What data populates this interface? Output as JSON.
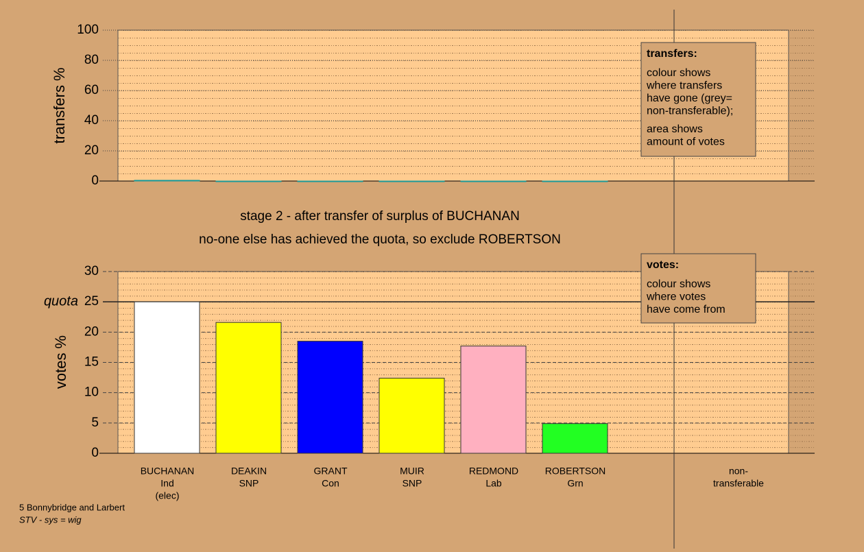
{
  "chart_data": [
    {
      "type": "bar",
      "ylabel": "transfers %",
      "ylim": [
        0,
        100
      ],
      "yticks": [
        0,
        20,
        40,
        60,
        80,
        100
      ],
      "values": [
        0.5,
        0,
        0,
        0,
        0,
        0
      ],
      "color": "#1a9a9a",
      "legend": {
        "title": "transfers:",
        "lines": [
          "colour shows",
          "where transfers",
          "have gone (grey=",
          "non-transferable);"
        ],
        "lines2": [
          "area shows",
          "amount of votes"
        ]
      }
    },
    {
      "type": "bar",
      "ylabel": "votes %",
      "ylim": [
        0,
        30
      ],
      "yticks": [
        0,
        5,
        10,
        15,
        20,
        25,
        30
      ],
      "subtitle": [
        "stage 2 - after transfer of surplus of BUCHANAN",
        "no-one else has achieved the quota, so exclude ROBERTSON"
      ],
      "quota": {
        "label": "quota",
        "value": 25
      },
      "categories": [
        [
          "BUCHANAN",
          "Ind",
          "(elec)"
        ],
        [
          "DEAKIN",
          "SNP"
        ],
        [
          "GRANT",
          "Con"
        ],
        [
          "MUIR",
          "SNP"
        ],
        [
          "REDMOND",
          "Lab"
        ],
        [
          "ROBERTSON",
          "Grn"
        ],
        [
          "non-",
          "transferable"
        ]
      ],
      "values": [
        25,
        21.6,
        18.5,
        12.4,
        17.7,
        4.9,
        null
      ],
      "colors": [
        "#ffffff",
        "#ffff00",
        "#0000ff",
        "#ffff00",
        "#ffb0c0",
        "#22ff22",
        null
      ],
      "legend": {
        "title": "votes:",
        "lines": [
          "colour shows",
          "where votes",
          "have come from"
        ]
      }
    }
  ],
  "footer": [
    "5 Bonnybridge and Larbert",
    "STV - sys = wig"
  ]
}
